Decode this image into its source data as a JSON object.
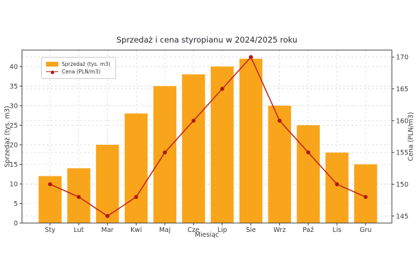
{
  "chart_data": {
    "type": "bar",
    "combo": [
      "bar",
      "line"
    ],
    "title": "Sprzedaż i cena styropianu w 2024/2025 roku",
    "categories": [
      "Sty",
      "Lut",
      "Mar",
      "Kwi",
      "Maj",
      "Cze",
      "Lip",
      "Sie",
      "Wrz",
      "Paź",
      "Lis",
      "Gru"
    ],
    "series": [
      {
        "name": "Sprzedaż (tys. m3)",
        "type": "bar",
        "axis": "left",
        "color": "#F9A51B",
        "values": [
          12,
          14,
          20,
          28,
          35,
          38,
          40,
          42,
          30,
          25,
          18,
          15
        ]
      },
      {
        "name": "Cena (PLN/m3)",
        "type": "line",
        "axis": "right",
        "color": "#C3271B",
        "marker_color": "#A81A10",
        "values": [
          150,
          148,
          145,
          148,
          155,
          160,
          165,
          170,
          160,
          155,
          150,
          148
        ]
      }
    ],
    "xlabel": "Miesiąc",
    "ylabel_left": "Sprzedaż (tys. m3)",
    "ylabel_right": "Cena (PLN/m3)",
    "yticks_left": [
      0,
      5,
      10,
      15,
      20,
      25,
      30,
      35,
      40
    ],
    "yticks_right": [
      145,
      150,
      155,
      160,
      165,
      170
    ],
    "ylim_left": [
      0,
      44.2
    ],
    "ylim_right": [
      143.9,
      171.1
    ],
    "grid": true,
    "legend_position": "upper-left",
    "colors": {
      "bar": "#F9A51B",
      "line": "#C3271B",
      "grid": "#d9d9d9",
      "spine": "#3d3d3d",
      "text": "#3a3a3a",
      "title": "#26262e"
    }
  }
}
